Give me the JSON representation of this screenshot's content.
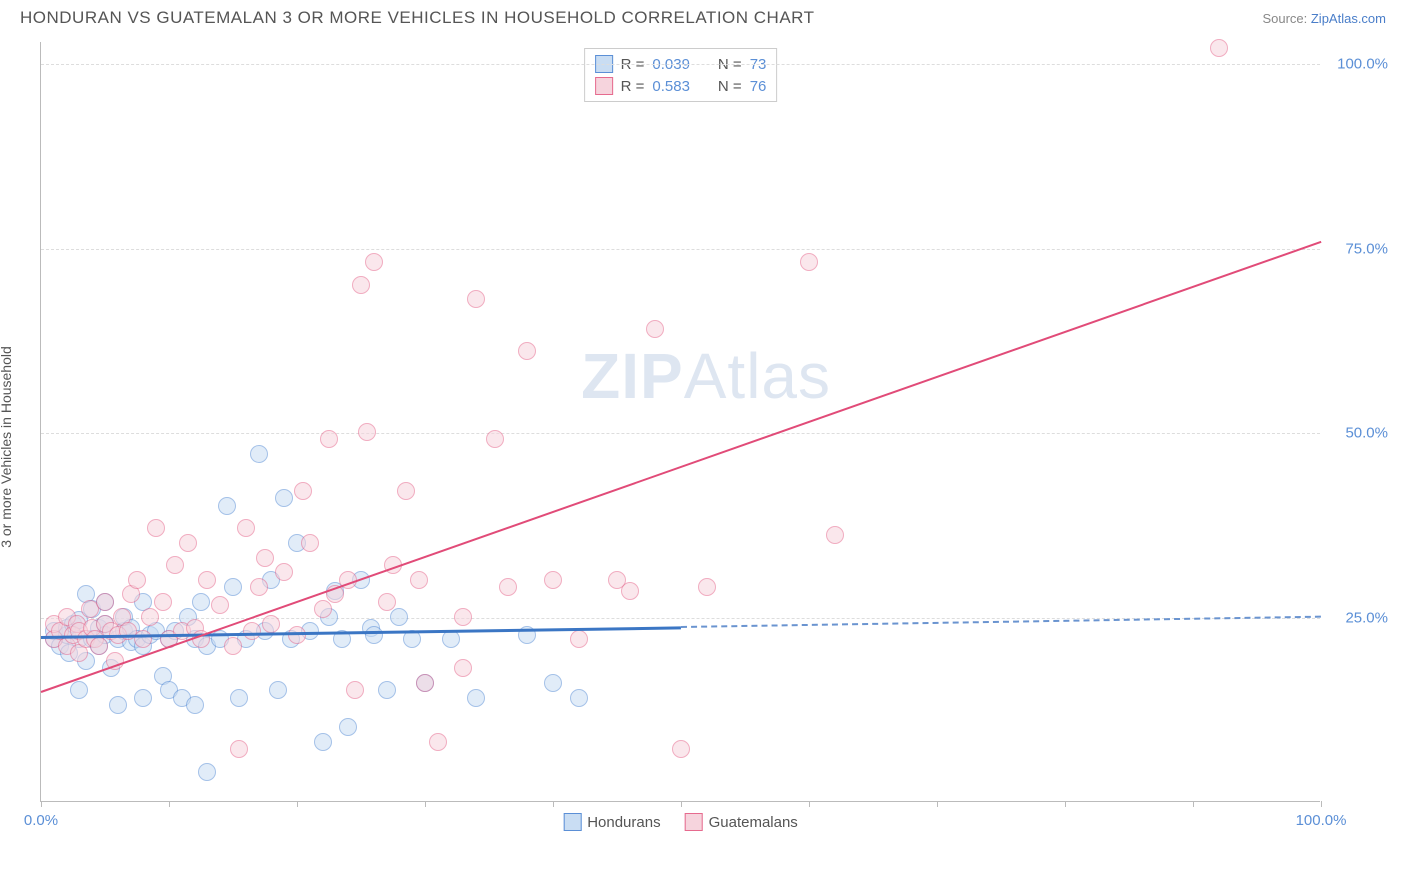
{
  "header": {
    "title": "HONDURAN VS GUATEMALAN 3 OR MORE VEHICLES IN HOUSEHOLD CORRELATION CHART",
    "source_prefix": "Source: ",
    "source_link": "ZipAtlas.com"
  },
  "ylabel": "3 or more Vehicles in Household",
  "watermark": {
    "zip": "ZIP",
    "atlas": "Atlas"
  },
  "chart": {
    "type": "scatter",
    "xlim": [
      0,
      100
    ],
    "ylim": [
      0,
      103
    ],
    "xticks": [
      0,
      10,
      20,
      30,
      40,
      50,
      60,
      70,
      80,
      90,
      100
    ],
    "xtick_labels": {
      "0": "0.0%",
      "100": "100.0%"
    },
    "yticks": [
      25,
      50,
      75,
      100
    ],
    "ytick_labels": [
      "25.0%",
      "50.0%",
      "75.0%",
      "100.0%"
    ],
    "background_color": "#ffffff",
    "grid_color": "#dddddd",
    "axis_color": "#bbbbbb",
    "label_color": "#5b8fd6",
    "marker_radius": 9,
    "marker_opacity": 0.55,
    "series": [
      {
        "name": "Hondurans",
        "fill": "#c9ddf3",
        "stroke": "#5b8fd6",
        "line_color": "#3b76c4",
        "line_width": 3,
        "dash_color": "#6a94d0",
        "R": "0.039",
        "N": "73",
        "trend": {
          "x1": 0,
          "y1": 22.5,
          "x2": 50,
          "y2": 23.8,
          "x2_dash": 100,
          "y2_dash": 25.2
        },
        "points": [
          [
            1,
            22
          ],
          [
            1,
            23
          ],
          [
            1.5,
            21
          ],
          [
            2,
            22.5
          ],
          [
            2,
            23.5
          ],
          [
            2.5,
            24
          ],
          [
            2.2,
            20
          ],
          [
            3,
            22
          ],
          [
            3,
            24.5
          ],
          [
            3.5,
            28
          ],
          [
            3,
            15
          ],
          [
            3.5,
            19
          ],
          [
            4,
            22
          ],
          [
            4,
            26
          ],
          [
            4.5,
            21
          ],
          [
            4.5,
            23.5
          ],
          [
            5,
            22.5
          ],
          [
            5,
            24
          ],
          [
            5,
            27
          ],
          [
            5.5,
            18
          ],
          [
            6,
            22
          ],
          [
            6,
            13
          ],
          [
            6.5,
            23
          ],
          [
            6.5,
            25
          ],
          [
            7,
            21.5
          ],
          [
            7,
            23.5
          ],
          [
            7.5,
            22
          ],
          [
            8,
            14
          ],
          [
            8,
            21
          ],
          [
            8,
            27
          ],
          [
            8.5,
            22.5
          ],
          [
            9,
            23
          ],
          [
            9.5,
            17
          ],
          [
            10,
            22
          ],
          [
            10,
            15
          ],
          [
            10.5,
            23
          ],
          [
            11,
            14
          ],
          [
            11.5,
            25
          ],
          [
            12,
            22
          ],
          [
            12,
            13
          ],
          [
            12.5,
            27
          ],
          [
            13,
            21
          ],
          [
            13,
            4
          ],
          [
            14,
            22
          ],
          [
            14.5,
            40
          ],
          [
            15,
            29
          ],
          [
            15.5,
            14
          ],
          [
            16,
            22
          ],
          [
            17,
            47
          ],
          [
            17.5,
            23
          ],
          [
            18,
            30
          ],
          [
            18.5,
            15
          ],
          [
            19,
            41
          ],
          [
            19.5,
            22
          ],
          [
            20,
            35
          ],
          [
            21,
            23
          ],
          [
            22,
            8
          ],
          [
            22.5,
            25
          ],
          [
            23,
            28.5
          ],
          [
            23.5,
            22
          ],
          [
            24,
            10
          ],
          [
            25,
            30
          ],
          [
            25.8,
            23.5
          ],
          [
            26,
            22.5
          ],
          [
            27,
            15
          ],
          [
            28,
            25
          ],
          [
            29,
            22
          ],
          [
            30,
            16
          ],
          [
            32,
            22
          ],
          [
            34,
            14
          ],
          [
            38,
            22.5
          ],
          [
            40,
            16
          ],
          [
            42,
            14
          ]
        ]
      },
      {
        "name": "Guatemalans",
        "fill": "#f6d4dd",
        "stroke": "#e66a8e",
        "line_color": "#e14b78",
        "line_width": 2.5,
        "dash_color": "#e88aa6",
        "R": "0.583",
        "N": "76",
        "trend": {
          "x1": 0,
          "y1": 15,
          "x2": 100,
          "y2": 76,
          "x2_dash": 100,
          "y2_dash": 76
        },
        "points": [
          [
            1,
            22
          ],
          [
            1,
            24
          ],
          [
            1.5,
            23
          ],
          [
            2,
            21
          ],
          [
            2,
            25
          ],
          [
            2.5,
            22.5
          ],
          [
            2.8,
            24
          ],
          [
            3,
            23
          ],
          [
            3,
            20
          ],
          [
            3.5,
            22
          ],
          [
            3.8,
            26
          ],
          [
            4,
            23.5
          ],
          [
            4.2,
            22
          ],
          [
            4.5,
            21
          ],
          [
            5,
            24
          ],
          [
            5,
            27
          ],
          [
            5.5,
            23
          ],
          [
            5.8,
            19
          ],
          [
            6,
            22.5
          ],
          [
            6.3,
            25
          ],
          [
            6.8,
            23
          ],
          [
            7,
            28
          ],
          [
            7.5,
            30
          ],
          [
            8,
            22
          ],
          [
            8.5,
            25
          ],
          [
            9,
            37
          ],
          [
            9.5,
            27
          ],
          [
            10,
            22
          ],
          [
            10.5,
            32
          ],
          [
            11,
            23
          ],
          [
            11.5,
            35
          ],
          [
            12,
            23.5
          ],
          [
            12.5,
            22
          ],
          [
            13,
            30
          ],
          [
            14,
            26.5
          ],
          [
            15,
            21
          ],
          [
            15.5,
            7
          ],
          [
            16,
            37
          ],
          [
            16.5,
            23
          ],
          [
            17,
            29
          ],
          [
            17.5,
            33
          ],
          [
            18,
            24
          ],
          [
            19,
            31
          ],
          [
            20,
            22.5
          ],
          [
            20.5,
            42
          ],
          [
            21,
            35
          ],
          [
            22,
            26
          ],
          [
            22.5,
            49
          ],
          [
            23,
            28
          ],
          [
            24,
            30
          ],
          [
            24.5,
            15
          ],
          [
            25,
            70
          ],
          [
            25.5,
            50
          ],
          [
            26,
            73
          ],
          [
            27,
            27
          ],
          [
            27.5,
            32
          ],
          [
            28.5,
            42
          ],
          [
            29.5,
            30
          ],
          [
            30,
            16
          ],
          [
            31,
            8
          ],
          [
            33,
            18
          ],
          [
            33,
            25
          ],
          [
            34,
            68
          ],
          [
            35.5,
            49
          ],
          [
            36.5,
            29
          ],
          [
            38,
            61
          ],
          [
            40,
            30
          ],
          [
            42,
            22
          ],
          [
            45,
            30
          ],
          [
            46,
            28.5
          ],
          [
            48,
            64
          ],
          [
            50,
            7
          ],
          [
            52,
            29
          ],
          [
            60,
            73
          ],
          [
            62,
            36
          ],
          [
            92,
            102
          ]
        ]
      }
    ]
  },
  "stats_box": {
    "r_label": "R = ",
    "n_label": "N = "
  },
  "legend": {
    "items": [
      "Hondurans",
      "Guatemalans"
    ]
  }
}
